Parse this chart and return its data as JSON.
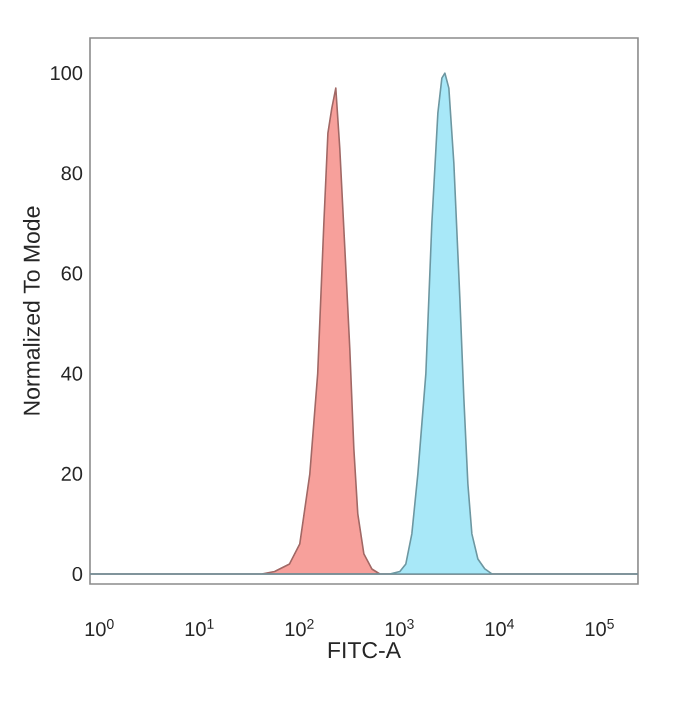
{
  "chart_data": {
    "type": "area",
    "xlabel": "FITC-A",
    "ylabel": "Normalized To Mode",
    "log": "x",
    "grid": false,
    "xlim": [
      0.8,
      240000
    ],
    "ylim": [
      -2,
      107
    ],
    "xticks": [
      {
        "value": 1,
        "label": "10$^{0}$"
      },
      {
        "value": 10,
        "label": "10$^{1}$"
      },
      {
        "value": 100,
        "label": "10$^{2}$"
      },
      {
        "value": 1000,
        "label": "10$^{3}$"
      },
      {
        "value": 10000,
        "label": "10$^{4}$"
      },
      {
        "value": 100000,
        "label": "10$^{5}$"
      }
    ],
    "yticks": [
      0,
      20,
      40,
      60,
      80,
      100
    ],
    "series": [
      {
        "color": "#f7a09b",
        "x": [
          0.8,
          41.7,
          56,
          79,
          100,
          126,
          151,
          174,
          191,
          209,
          229,
          251,
          282,
          316,
          347,
          380,
          437,
          525,
          631,
          240000
        ],
        "values": [
          0,
          0,
          0.5,
          2,
          6,
          20,
          40,
          70,
          88,
          93,
          97,
          85,
          65,
          45,
          25,
          12,
          4,
          1,
          0,
          0
        ]
      },
      {
        "color": "#a8e8f8",
        "x": [
          0.8,
          794,
          1000,
          1148,
          1318,
          1514,
          1820,
          2089,
          2399,
          2630,
          2818,
          3090,
          3467,
          3981,
          4365,
          4786,
          5248,
          6026,
          7079,
          8318,
          240000
        ],
        "values": [
          0,
          0,
          0.5,
          2,
          8,
          20,
          40,
          70,
          92,
          99,
          100,
          97,
          82,
          55,
          35,
          18,
          8,
          3,
          1,
          0,
          0
        ]
      }
    ]
  }
}
